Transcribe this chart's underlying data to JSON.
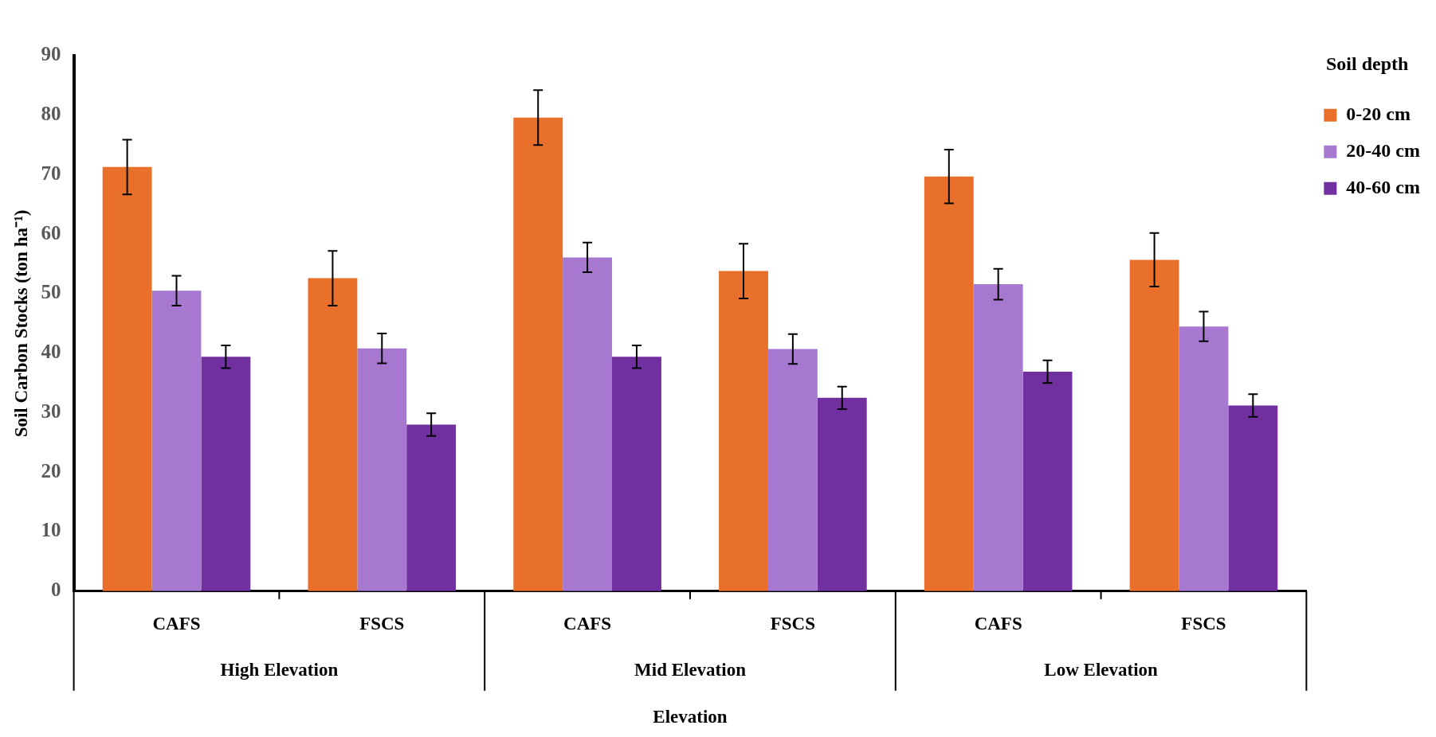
{
  "chart_data": {
    "type": "bar",
    "xlabel": "Elevation",
    "ylabel": "Soil Carbon Stocks (ton ha⁻¹)",
    "legend_title": "Soil depth",
    "legend": "top right",
    "grid": false,
    "categories": [
      "CAFS",
      "FSCS",
      "CAFS",
      "FSCS",
      "CAFS",
      "FSCS"
    ],
    "annotations": [
      "High Elevation",
      "Mid Elevation",
      "Low Elevation"
    ],
    "ylim": [
      0,
      90
    ],
    "yticks": [
      0,
      10,
      20,
      30,
      40,
      50,
      60,
      70,
      80,
      90
    ],
    "series": [
      {
        "name": "0-20 cm",
        "color": "#e8702a",
        "values": [
          71.3,
          52.6,
          79.6,
          53.8,
          69.7,
          55.7
        ],
        "errors": [
          4.6,
          4.6,
          4.6,
          4.6,
          4.5,
          4.5
        ]
      },
      {
        "name": "20-40 cm",
        "color": "#a778d0",
        "values": [
          50.5,
          40.8,
          56.1,
          40.7,
          51.6,
          44.5
        ],
        "errors": [
          2.5,
          2.5,
          2.5,
          2.5,
          2.6,
          2.5
        ]
      },
      {
        "name": "40-60 cm",
        "color": "#7030a0",
        "values": [
          39.4,
          28.0,
          39.4,
          32.5,
          36.9,
          31.2
        ],
        "errors": [
          1.9,
          1.9,
          1.9,
          1.9,
          1.9,
          1.9
        ]
      }
    ]
  }
}
